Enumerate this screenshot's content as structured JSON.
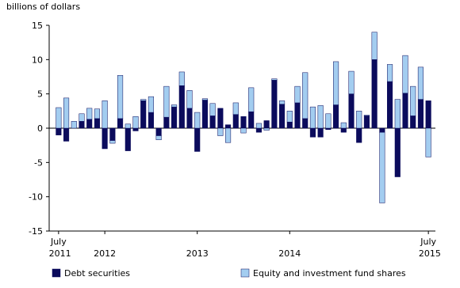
{
  "chart_data": {
    "type": "bar",
    "stacked": true,
    "y_label": "billions of dollars",
    "categories": [
      "July 2011",
      null,
      null,
      null,
      null,
      null,
      "2012",
      null,
      null,
      null,
      null,
      null,
      null,
      null,
      null,
      null,
      null,
      null,
      "2013",
      null,
      null,
      null,
      null,
      null,
      null,
      null,
      null,
      null,
      null,
      null,
      "2014",
      null,
      null,
      null,
      null,
      null,
      null,
      null,
      null,
      null,
      null,
      null,
      null,
      null,
      null,
      null,
      null,
      null,
      "July 2015"
    ],
    "series": [
      {
        "name": "Debt securities",
        "color": "#0b0b5c",
        "values": [
          -1.0,
          -1.9,
          0,
          1.0,
          1.3,
          1.4,
          -3.0,
          -1.8,
          1.4,
          -3.3,
          -0.4,
          4.0,
          2.3,
          -1.1,
          1.6,
          3.1,
          6.2,
          2.9,
          -3.4,
          4.1,
          1.8,
          2.9,
          0.5,
          2.0,
          1.7,
          2.4,
          -0.6,
          1.1,
          7.0,
          3.5,
          0.9,
          3.7,
          1.4,
          -1.3,
          -1.3,
          -0.2,
          3.4,
          -0.6,
          5.0,
          -2.1,
          1.8,
          10.0,
          -0.6,
          6.8,
          -7.1,
          5.1,
          1.8,
          4.2,
          4.0
        ]
      },
      {
        "name": "Equity and investment fund shares",
        "color": "#a3cdf0",
        "values": [
          3.0,
          4.4,
          1.0,
          1.1,
          1.6,
          1.4,
          4.0,
          -0.4,
          6.3,
          0.6,
          1.7,
          0.2,
          2.3,
          -0.6,
          4.5,
          0.3,
          2.0,
          2.6,
          2.3,
          0.2,
          1.8,
          -1.1,
          -2.1,
          1.7,
          -0.7,
          3.5,
          0.7,
          -0.3,
          0.2,
          0.5,
          1.6,
          2.4,
          6.7,
          3.1,
          3.3,
          2.1,
          6.3,
          0.8,
          3.3,
          2.5,
          0.1,
          4.0,
          -10.3,
          2.5,
          4.2,
          5.5,
          4.3,
          4.7,
          -4.2
        ]
      }
    ],
    "ylim": [
      -15,
      15
    ],
    "yticks": [
      15,
      10,
      5,
      0,
      -5,
      -10,
      -15
    ],
    "grid": false
  }
}
